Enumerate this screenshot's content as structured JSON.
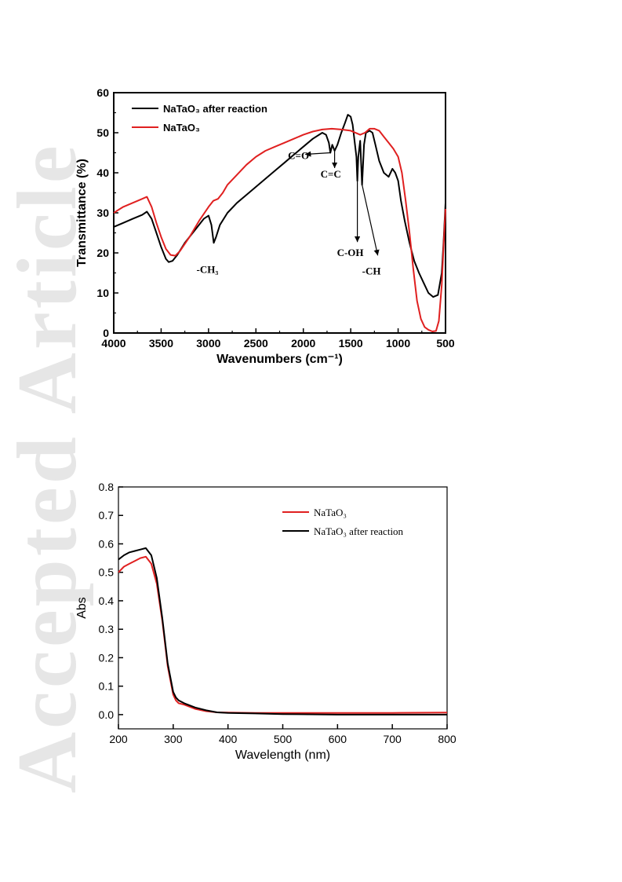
{
  "watermark": {
    "text": "Accepted Article",
    "color": "#e6e6e6"
  },
  "chart_data": [
    {
      "type": "line",
      "xlabel": "Wavenumbers (cm⁻¹)",
      "ylabel": "Transmittance (%)",
      "xlim": [
        4000,
        500
      ],
      "ylim": [
        0,
        60
      ],
      "x_ticks": [
        "4000",
        "3500",
        "3000",
        "2500",
        "2000",
        "1500",
        "1000",
        "500"
      ],
      "y_ticks": [
        "0",
        "10",
        "20",
        "30",
        "40",
        "50",
        "60"
      ],
      "legend_position": "top-left",
      "series": [
        {
          "name": "NaTaO₃ after reaction",
          "color": "#000000",
          "points": [
            [
              4000,
              26.5
            ],
            [
              3900,
              27.5
            ],
            [
              3800,
              28.5
            ],
            [
              3700,
              29.5
            ],
            [
              3650,
              30.3
            ],
            [
              3600,
              28.5
            ],
            [
              3550,
              25
            ],
            [
              3500,
              21.5
            ],
            [
              3450,
              18.5
            ],
            [
              3420,
              17.7
            ],
            [
              3380,
              18
            ],
            [
              3330,
              19.5
            ],
            [
              3250,
              22.5
            ],
            [
              3150,
              25.5
            ],
            [
              3050,
              28.5
            ],
            [
              3000,
              29.3
            ],
            [
              2970,
              27
            ],
            [
              2945,
              22.5
            ],
            [
              2920,
              24
            ],
            [
              2880,
              27
            ],
            [
              2800,
              30
            ],
            [
              2700,
              32.5
            ],
            [
              2600,
              34.5
            ],
            [
              2500,
              36.5
            ],
            [
              2400,
              38.5
            ],
            [
              2300,
              40.5
            ],
            [
              2200,
              42.5
            ],
            [
              2100,
              44.5
            ],
            [
              2000,
              46.5
            ],
            [
              1900,
              48.5
            ],
            [
              1800,
              50
            ],
            [
              1760,
              49.5
            ],
            [
              1730,
              47.5
            ],
            [
              1715,
              45
            ],
            [
              1695,
              47
            ],
            [
              1670,
              45.5
            ],
            [
              1640,
              47
            ],
            [
              1600,
              50
            ],
            [
              1560,
              52.5
            ],
            [
              1530,
              54.5
            ],
            [
              1500,
              54
            ],
            [
              1480,
              52
            ],
            [
              1460,
              48
            ],
            [
              1440,
              44
            ],
            [
              1430,
              38
            ],
            [
              1420,
              44
            ],
            [
              1400,
              48
            ],
            [
              1380,
              37
            ],
            [
              1360,
              47
            ],
            [
              1340,
              50
            ],
            [
              1300,
              50.5
            ],
            [
              1270,
              50
            ],
            [
              1240,
              47
            ],
            [
              1200,
              43
            ],
            [
              1150,
              40
            ],
            [
              1100,
              39
            ],
            [
              1060,
              41
            ],
            [
              1030,
              40
            ],
            [
              1000,
              38
            ],
            [
              970,
              33
            ],
            [
              930,
              28
            ],
            [
              880,
              22.5
            ],
            [
              830,
              18
            ],
            [
              780,
              15
            ],
            [
              730,
              12.5
            ],
            [
              680,
              10
            ],
            [
              630,
              9
            ],
            [
              580,
              9.5
            ],
            [
              540,
              15
            ],
            [
              520,
              23
            ],
            [
              500,
              32.5
            ]
          ]
        },
        {
          "name": "NaTaO₃",
          "color": "#e02020",
          "points": [
            [
              4000,
              30
            ],
            [
              3900,
              31.5
            ],
            [
              3800,
              32.5
            ],
            [
              3700,
              33.5
            ],
            [
              3650,
              34
            ],
            [
              3600,
              31.5
            ],
            [
              3550,
              27.5
            ],
            [
              3500,
              24
            ],
            [
              3450,
              21
            ],
            [
              3400,
              19.5
            ],
            [
              3350,
              19.3
            ],
            [
              3300,
              20.5
            ],
            [
              3200,
              24
            ],
            [
              3100,
              28
            ],
            [
              3000,
              31.5
            ],
            [
              2950,
              33
            ],
            [
              2900,
              33.5
            ],
            [
              2850,
              35
            ],
            [
              2800,
              37
            ],
            [
              2700,
              39.5
            ],
            [
              2600,
              42
            ],
            [
              2500,
              44
            ],
            [
              2400,
              45.5
            ],
            [
              2300,
              46.5
            ],
            [
              2200,
              47.5
            ],
            [
              2100,
              48.5
            ],
            [
              2000,
              49.5
            ],
            [
              1900,
              50.3
            ],
            [
              1800,
              50.8
            ],
            [
              1700,
              51
            ],
            [
              1600,
              50.8
            ],
            [
              1500,
              50.5
            ],
            [
              1400,
              49.5
            ],
            [
              1350,
              50
            ],
            [
              1300,
              51
            ],
            [
              1250,
              51
            ],
            [
              1200,
              50.5
            ],
            [
              1150,
              49
            ],
            [
              1100,
              47.5
            ],
            [
              1050,
              46
            ],
            [
              1000,
              44
            ],
            [
              960,
              40
            ],
            [
              920,
              33
            ],
            [
              880,
              25
            ],
            [
              840,
              16
            ],
            [
              800,
              8
            ],
            [
              760,
              3.5
            ],
            [
              720,
              1.5
            ],
            [
              680,
              0.8
            ],
            [
              640,
              0.4
            ],
            [
              600,
              0.5
            ],
            [
              570,
              3
            ],
            [
              540,
              12
            ],
            [
              520,
              22
            ],
            [
              500,
              31
            ]
          ]
        }
      ],
      "annotations": [
        {
          "text": "-CH₃",
          "x": 2945,
          "y": 22.5
        },
        {
          "text": "C=O",
          "x": 1715,
          "y": 45
        },
        {
          "text": "C=C",
          "x": 1670,
          "y": 45.5
        },
        {
          "text": "C-OH",
          "x": 1430,
          "y": 38
        },
        {
          "text": "-CH",
          "x": 1380,
          "y": 37
        }
      ]
    },
    {
      "type": "line",
      "xlabel": "Wavelength (nm)",
      "ylabel": "Abs",
      "xlim": [
        200,
        800
      ],
      "ylim": [
        -0.05,
        0.8
      ],
      "x_ticks": [
        "200",
        "300",
        "400",
        "500",
        "600",
        "700",
        "800"
      ],
      "y_ticks": [
        "0.0",
        "0.1",
        "0.2",
        "0.3",
        "0.4",
        "0.5",
        "0.6",
        "0.7",
        "0.8"
      ],
      "legend_position": "top-right",
      "series": [
        {
          "name": "NaTaO₃",
          "color": "#e02020",
          "points": [
            [
              200,
              0.5
            ],
            [
              210,
              0.52
            ],
            [
              220,
              0.53
            ],
            [
              230,
              0.54
            ],
            [
              240,
              0.55
            ],
            [
              250,
              0.555
            ],
            [
              260,
              0.53
            ],
            [
              270,
              0.46
            ],
            [
              280,
              0.33
            ],
            [
              290,
              0.17
            ],
            [
              300,
              0.07
            ],
            [
              305,
              0.05
            ],
            [
              310,
              0.04
            ],
            [
              320,
              0.035
            ],
            [
              340,
              0.02
            ],
            [
              360,
              0.012
            ],
            [
              380,
              0.008
            ],
            [
              400,
              0.007
            ],
            [
              450,
              0.006
            ],
            [
              500,
              0.006
            ],
            [
              600,
              0.006
            ],
            [
              700,
              0.006
            ],
            [
              800,
              0.007
            ]
          ]
        },
        {
          "name": "NaTaO₃ after reaction",
          "color": "#000000",
          "points": [
            [
              200,
              0.545
            ],
            [
              210,
              0.56
            ],
            [
              220,
              0.57
            ],
            [
              230,
              0.575
            ],
            [
              240,
              0.58
            ],
            [
              250,
              0.585
            ],
            [
              260,
              0.56
            ],
            [
              270,
              0.48
            ],
            [
              280,
              0.34
            ],
            [
              290,
              0.18
            ],
            [
              300,
              0.08
            ],
            [
              305,
              0.06
            ],
            [
              310,
              0.05
            ],
            [
              320,
              0.04
            ],
            [
              340,
              0.025
            ],
            [
              360,
              0.015
            ],
            [
              380,
              0.008
            ],
            [
              400,
              0.006
            ],
            [
              450,
              0.004
            ],
            [
              500,
              0.002
            ],
            [
              600,
              0.0
            ],
            [
              700,
              0.0
            ],
            [
              800,
              0.0
            ]
          ]
        }
      ]
    }
  ]
}
